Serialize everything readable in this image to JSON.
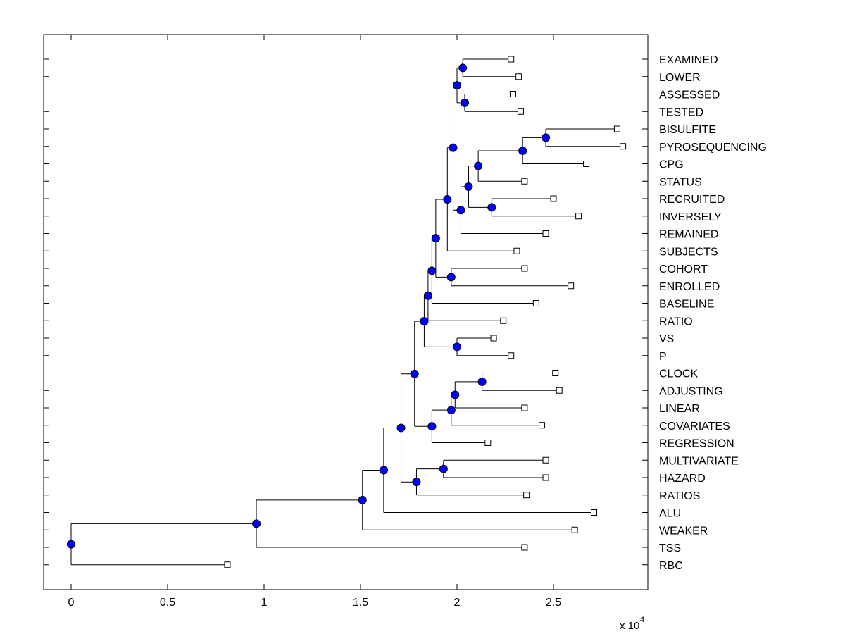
{
  "chart_data": {
    "type": "dendrogram",
    "orientation": "horizontal",
    "title": "",
    "xlabel": "",
    "ylabel": "",
    "x_multiplier_text": "x 10",
    "x_multiplier_exp": "4",
    "xlim": [
      -0.15,
      3.0
    ],
    "xticks": [
      {
        "value": 0,
        "label": "0"
      },
      {
        "value": 0.5,
        "label": "0.5"
      },
      {
        "value": 1,
        "label": "1"
      },
      {
        "value": 1.5,
        "label": "1.5"
      },
      {
        "value": 2,
        "label": "2"
      },
      {
        "value": 2.5,
        "label": "2.5"
      }
    ],
    "leaves": [
      {
        "name": "EXAMINED",
        "x": 2.28
      },
      {
        "name": "LOWER",
        "x": 2.32
      },
      {
        "name": "ASSESSED",
        "x": 2.29
      },
      {
        "name": "TESTED",
        "x": 2.33
      },
      {
        "name": "BISULFITE",
        "x": 2.83
      },
      {
        "name": "PYROSEQUENCING",
        "x": 2.86
      },
      {
        "name": "CPG",
        "x": 2.67
      },
      {
        "name": "STATUS",
        "x": 2.35
      },
      {
        "name": "RECRUITED",
        "x": 2.5
      },
      {
        "name": "INVERSELY",
        "x": 2.63
      },
      {
        "name": "REMAINED",
        "x": 2.46
      },
      {
        "name": "SUBJECTS",
        "x": 2.31
      },
      {
        "name": "COHORT",
        "x": 2.35
      },
      {
        "name": "ENROLLED",
        "x": 2.59
      },
      {
        "name": "BASELINE",
        "x": 2.41
      },
      {
        "name": "RATIO",
        "x": 2.24
      },
      {
        "name": "VS",
        "x": 2.19
      },
      {
        "name": "P",
        "x": 2.28
      },
      {
        "name": "CLOCK",
        "x": 2.51
      },
      {
        "name": "ADJUSTING",
        "x": 2.53
      },
      {
        "name": "LINEAR",
        "x": 2.35
      },
      {
        "name": "COVARIATES",
        "x": 2.44
      },
      {
        "name": "REGRESSION",
        "x": 2.16
      },
      {
        "name": "MULTIVARIATE",
        "x": 2.46
      },
      {
        "name": "HAZARD",
        "x": 2.46
      },
      {
        "name": "RATIOS",
        "x": 2.36
      },
      {
        "name": "ALU",
        "x": 2.71
      },
      {
        "name": "WEAKER",
        "x": 2.61
      },
      {
        "name": "TSS",
        "x": 2.35
      },
      {
        "name": "RBC",
        "x": 0.81
      }
    ],
    "nodes": [
      {
        "id": "n_exam_low",
        "x": 2.03,
        "children": [
          "L:0",
          "L:1"
        ]
      },
      {
        "id": "n_ass_test",
        "x": 2.04,
        "children": [
          "L:2",
          "L:3"
        ]
      },
      {
        "id": "n_top4",
        "x": 2.0,
        "children": [
          "n_exam_low",
          "n_ass_test"
        ]
      },
      {
        "id": "n_bis_pyro",
        "x": 2.46,
        "children": [
          "L:4",
          "L:5"
        ]
      },
      {
        "id": "n_bpc",
        "x": 2.34,
        "children": [
          "n_bis_pyro",
          "L:6"
        ]
      },
      {
        "id": "n_bpcs",
        "x": 2.11,
        "children": [
          "n_bpc",
          "L:7"
        ]
      },
      {
        "id": "n_rec_inv",
        "x": 2.18,
        "children": [
          "L:8",
          "L:9"
        ]
      },
      {
        "id": "n_status_grp",
        "x": 2.06,
        "children": [
          "n_bpcs",
          "n_rec_inv"
        ]
      },
      {
        "id": "n_rem",
        "x": 2.02,
        "children": [
          "n_status_grp",
          "L:10"
        ]
      },
      {
        "id": "n_mid",
        "x": 1.98,
        "children": [
          "n_top4",
          "n_rem"
        ]
      },
      {
        "id": "n_subj",
        "x": 1.95,
        "children": [
          "n_mid",
          "L:11"
        ]
      },
      {
        "id": "n_coh_enr",
        "x": 1.97,
        "children": [
          "L:12",
          "L:13"
        ]
      },
      {
        "id": "n_cohgrp",
        "x": 1.89,
        "children": [
          "n_subj",
          "n_coh_enr"
        ]
      },
      {
        "id": "n_base",
        "x": 1.87,
        "children": [
          "n_cohgrp",
          "L:14"
        ]
      },
      {
        "id": "n_ratio",
        "x": 1.85,
        "children": [
          "n_base",
          "L:15"
        ]
      },
      {
        "id": "n_vs_p",
        "x": 2.0,
        "children": [
          "L:16",
          "L:17"
        ]
      },
      {
        "id": "n_upper",
        "x": 1.83,
        "children": [
          "n_ratio",
          "n_vs_p"
        ]
      },
      {
        "id": "n_clock_adj",
        "x": 2.13,
        "children": [
          "L:18",
          "L:19"
        ]
      },
      {
        "id": "n_lin",
        "x": 1.99,
        "children": [
          "n_clock_adj",
          "L:20"
        ]
      },
      {
        "id": "n_cov",
        "x": 1.97,
        "children": [
          "n_lin",
          "L:21"
        ]
      },
      {
        "id": "n_reg",
        "x": 1.87,
        "children": [
          "n_cov",
          "L:22"
        ]
      },
      {
        "id": "n_mid2",
        "x": 1.78,
        "children": [
          "n_upper",
          "n_reg"
        ]
      },
      {
        "id": "n_multi_haz",
        "x": 1.93,
        "children": [
          "L:23",
          "L:24"
        ]
      },
      {
        "id": "n_ratios",
        "x": 1.79,
        "children": [
          "n_multi_haz",
          "L:25"
        ]
      },
      {
        "id": "n_big",
        "x": 1.71,
        "children": [
          "n_mid2",
          "n_ratios"
        ]
      },
      {
        "id": "n_alu",
        "x": 1.62,
        "children": [
          "n_big",
          "L:26"
        ]
      },
      {
        "id": "n_weaker",
        "x": 1.51,
        "children": [
          "n_alu",
          "L:27"
        ]
      },
      {
        "id": "n_tss",
        "x": 0.96,
        "children": [
          "n_weaker",
          "L:28"
        ]
      },
      {
        "id": "n_root",
        "x": 0.0,
        "children": [
          "n_tss",
          "L:29"
        ]
      }
    ],
    "colors": {
      "node_fill": "#0000ff",
      "line": "#000000",
      "leaf_fill": "#ffffff",
      "axes": "#000000"
    }
  }
}
